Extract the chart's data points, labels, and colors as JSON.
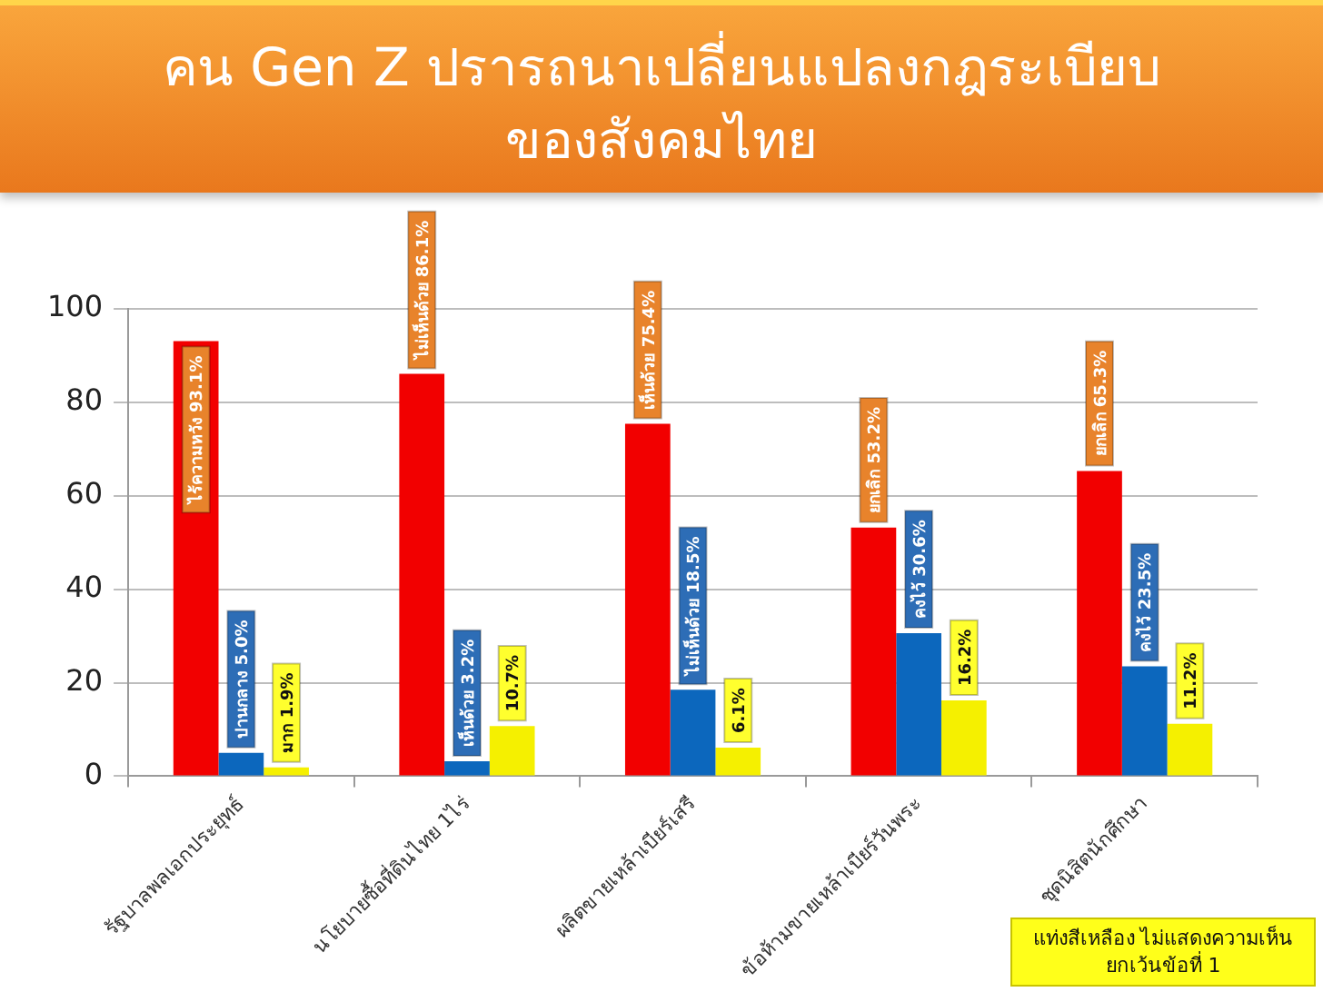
{
  "chart_data": {
    "type": "bar",
    "title": "คน Gen Z ปรารถนาเปลี่ยนแปลงกฎระเบียบ\nของสังคมไทย",
    "categories": [
      "รัฐบาลพลเอกประยุทธ์",
      "นโยบายซื้อที่ดินไทย 1ไร่",
      "ผลิตขายเหล้าเบียร์เสรี",
      "ข้อห้ามขายเหล้าเบียร์วันพระ",
      "ชุดนิสิตนักศึกษา"
    ],
    "series": [
      {
        "color": "#f20000",
        "values": [
          93.1,
          86.1,
          75.4,
          53.2,
          65.3
        ],
        "value_labels": [
          "ไร้ความหวัง 93.1%",
          "ไม่เห็นด้วย 86.1%",
          "เห็นด้วย 75.4%",
          "ยกเลิก 53.2%",
          "ยกเลิก 65.3%"
        ]
      },
      {
        "color": "#0c67bd",
        "values": [
          5.0,
          3.2,
          18.5,
          30.6,
          23.5
        ],
        "value_labels": [
          "ปานกลาง 5.0%",
          "เห็นด้วย 3.2%",
          "ไม่เห็นด้วย 18.5%",
          "คงไว้ 30.6%",
          "คงไว้ 23.5%"
        ]
      },
      {
        "color": "#f5f000",
        "values": [
          1.9,
          10.7,
          6.1,
          16.2,
          11.2
        ],
        "value_labels": [
          "มาก 1.9%",
          "10.7%",
          "6.1%",
          "16.2%",
          "11.2%"
        ]
      }
    ],
    "ylim": [
      0,
      100
    ],
    "yticks": [
      0,
      20,
      40,
      60,
      80,
      100
    ],
    "grid": "y",
    "annotations": [
      "แท่งสีเหลือง ไม่แสดงความเห็น\nยกเว้นข้อที่ 1"
    ]
  }
}
